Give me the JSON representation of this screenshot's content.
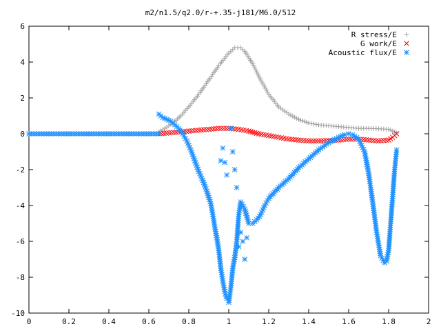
{
  "chart_data": {
    "type": "scatter",
    "title": "m2/n1.5/q2.0/r-+.35-j181/M6.0/512",
    "xlabel": "",
    "ylabel": "",
    "xlim": [
      0,
      2
    ],
    "ylim": [
      -10,
      6
    ],
    "x_ticks": [
      "0",
      "0.2",
      "0.4",
      "0.6",
      "0.8",
      "1",
      "1.2",
      "1.4",
      "1.6",
      "1.8",
      "2"
    ],
    "y_ticks": [
      "6",
      "4",
      "2",
      "0",
      "-2",
      "-4",
      "-6",
      "-8",
      "-10"
    ],
    "grid": false,
    "legend_position": "top-right",
    "series": [
      {
        "name": "R stress/E",
        "marker": "plus",
        "color": "#a0a0a0",
        "points": [
          [
            0.65,
            0.1
          ],
          [
            0.68,
            0.3
          ],
          [
            0.72,
            0.6
          ],
          [
            0.76,
            1.0
          ],
          [
            0.8,
            1.5
          ],
          [
            0.85,
            2.2
          ],
          [
            0.9,
            3.0
          ],
          [
            0.95,
            3.8
          ],
          [
            1.0,
            4.5
          ],
          [
            1.03,
            4.8
          ],
          [
            1.06,
            4.8
          ],
          [
            1.08,
            4.6
          ],
          [
            1.12,
            3.9
          ],
          [
            1.16,
            3.0
          ],
          [
            1.2,
            2.2
          ],
          [
            1.25,
            1.5
          ],
          [
            1.3,
            1.1
          ],
          [
            1.35,
            0.8
          ],
          [
            1.4,
            0.6
          ],
          [
            1.45,
            0.5
          ],
          [
            1.5,
            0.45
          ],
          [
            1.55,
            0.4
          ],
          [
            1.6,
            0.35
          ],
          [
            1.65,
            0.3
          ],
          [
            1.7,
            0.3
          ],
          [
            1.75,
            0.28
          ],
          [
            1.8,
            0.25
          ],
          [
            1.82,
            0.15
          ],
          [
            1.84,
            0.05
          ]
        ]
      },
      {
        "name": "G work/E",
        "marker": "cross",
        "color": "#ff0000",
        "points": [
          [
            0.65,
            0.0
          ],
          [
            0.7,
            0.05
          ],
          [
            0.75,
            0.1
          ],
          [
            0.8,
            0.15
          ],
          [
            0.85,
            0.2
          ],
          [
            0.9,
            0.25
          ],
          [
            0.95,
            0.3
          ],
          [
            1.0,
            0.3
          ],
          [
            1.05,
            0.25
          ],
          [
            1.1,
            0.15
          ],
          [
            1.15,
            0.0
          ],
          [
            1.2,
            -0.1
          ],
          [
            1.25,
            -0.2
          ],
          [
            1.3,
            -0.3
          ],
          [
            1.35,
            -0.35
          ],
          [
            1.4,
            -0.4
          ],
          [
            1.45,
            -0.4
          ],
          [
            1.5,
            -0.38
          ],
          [
            1.55,
            -0.35
          ],
          [
            1.6,
            -0.3
          ],
          [
            1.65,
            -0.3
          ],
          [
            1.7,
            -0.35
          ],
          [
            1.75,
            -0.4
          ],
          [
            1.8,
            -0.35
          ],
          [
            1.82,
            -0.2
          ],
          [
            1.84,
            0.0
          ]
        ]
      },
      {
        "name": "Acoustic flux/E",
        "marker": "star",
        "color": "#1e90ff",
        "points": [
          [
            0.65,
            1.1
          ],
          [
            0.67,
            0.9
          ],
          [
            0.69,
            0.8
          ],
          [
            0.71,
            0.7
          ],
          [
            0.73,
            0.5
          ],
          [
            0.75,
            0.3
          ],
          [
            0.77,
            0.0
          ],
          [
            0.79,
            -0.4
          ],
          [
            0.81,
            -0.9
          ],
          [
            0.83,
            -1.5
          ],
          [
            0.85,
            -2.1
          ],
          [
            0.87,
            -2.6
          ],
          [
            0.89,
            -3.2
          ],
          [
            0.91,
            -3.9
          ],
          [
            0.92,
            -4.5
          ],
          [
            0.93,
            -5.2
          ],
          [
            0.94,
            -5.8
          ],
          [
            0.95,
            -6.5
          ],
          [
            0.96,
            -7.5
          ],
          [
            0.97,
            -8.2
          ],
          [
            0.98,
            -8.8
          ],
          [
            0.99,
            -9.2
          ],
          [
            1.0,
            -9.4
          ],
          [
            1.01,
            -8.6
          ],
          [
            1.02,
            -7.5
          ],
          [
            1.03,
            -6.9
          ],
          [
            1.04,
            -6.0
          ],
          [
            1.05,
            -4.5
          ],
          [
            1.06,
            -3.8
          ],
          [
            1.08,
            -4.2
          ],
          [
            1.1,
            -5.0
          ],
          [
            1.12,
            -5.0
          ],
          [
            1.14,
            -4.8
          ],
          [
            1.16,
            -4.5
          ],
          [
            1.18,
            -4.0
          ],
          [
            1.2,
            -3.6
          ],
          [
            1.25,
            -3.0
          ],
          [
            1.3,
            -2.5
          ],
          [
            1.35,
            -1.9
          ],
          [
            1.4,
            -1.4
          ],
          [
            1.45,
            -0.9
          ],
          [
            1.5,
            -0.5
          ],
          [
            1.55,
            -0.2
          ],
          [
            1.58,
            -0.05
          ],
          [
            1.6,
            0.0
          ],
          [
            1.62,
            -0.05
          ],
          [
            1.65,
            -0.3
          ],
          [
            1.68,
            -1.0
          ],
          [
            1.7,
            -2.2
          ],
          [
            1.72,
            -3.8
          ],
          [
            1.74,
            -5.5
          ],
          [
            1.76,
            -6.8
          ],
          [
            1.78,
            -7.2
          ],
          [
            1.79,
            -7.1
          ],
          [
            1.8,
            -6.5
          ],
          [
            1.81,
            -5.0
          ],
          [
            1.82,
            -3.5
          ],
          [
            1.83,
            -2.0
          ],
          [
            1.84,
            -0.9
          ]
        ]
      },
      {
        "name": "",
        "marker": "star",
        "color": "#1e90ff",
        "points": [
          [
            0.0,
            0.0
          ],
          [
            0.05,
            0.0
          ],
          [
            0.1,
            0.0
          ],
          [
            0.15,
            0.0
          ],
          [
            0.2,
            0.0
          ],
          [
            0.25,
            0.0
          ],
          [
            0.3,
            0.0
          ],
          [
            0.35,
            0.0
          ],
          [
            0.4,
            0.0
          ],
          [
            0.45,
            0.0
          ],
          [
            0.5,
            0.0
          ],
          [
            0.55,
            0.0
          ],
          [
            0.6,
            0.0
          ],
          [
            0.65,
            0.0
          ]
        ]
      },
      {
        "name": "",
        "marker": "star",
        "color": "#1e90ff",
        "points": [
          [
            0.96,
            -1.5
          ],
          [
            0.97,
            -0.8
          ],
          [
            0.98,
            -1.6
          ],
          [
            0.99,
            -2.3
          ],
          [
            1.01,
            0.3
          ],
          [
            1.02,
            -1.0
          ],
          [
            1.03,
            -2.0
          ],
          [
            1.04,
            -3.0
          ],
          [
            1.05,
            -6.3
          ],
          [
            1.06,
            -5.5
          ],
          [
            1.07,
            -6.0
          ],
          [
            1.08,
            -7.0
          ],
          [
            1.09,
            -5.8
          ]
        ]
      }
    ]
  }
}
